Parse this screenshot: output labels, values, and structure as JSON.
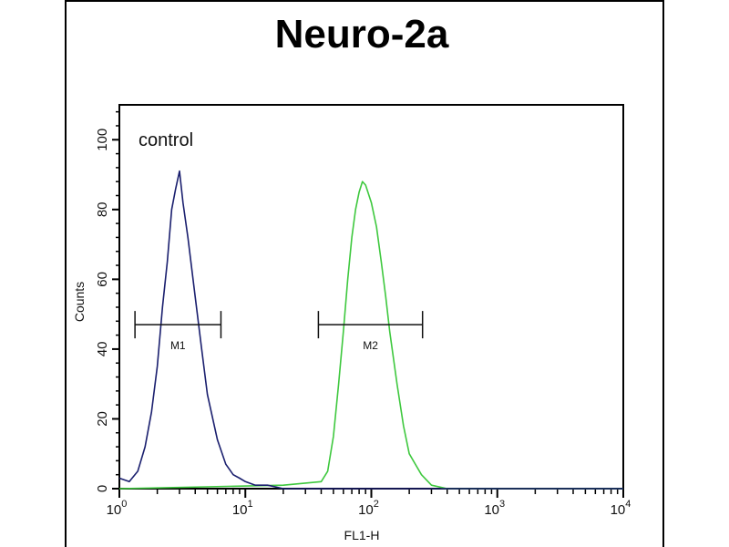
{
  "chart_data": {
    "type": "line",
    "title": "Neuro-2a",
    "xlabel": "FL1-H",
    "ylabel": "Counts",
    "xscale": "log",
    "xlim": [
      1,
      10000
    ],
    "ylim": [
      0,
      110
    ],
    "x_tick_labels": [
      {
        "base": "10",
        "exp": "0",
        "value": 1
      },
      {
        "base": "10",
        "exp": "1",
        "value": 10
      },
      {
        "base": "10",
        "exp": "2",
        "value": 100
      },
      {
        "base": "10",
        "exp": "3",
        "value": 1000
      },
      {
        "base": "10",
        "exp": "4",
        "value": 10000
      }
    ],
    "y_ticks": [
      0,
      20,
      40,
      60,
      80,
      100
    ],
    "y_tick_labels": [
      "0",
      "20",
      "40",
      "60",
      "80",
      "100"
    ],
    "grid": false,
    "annotation": "control",
    "series": [
      {
        "color": "#1a1f6e",
        "x": [
          1,
          1.2,
          1.4,
          1.6,
          1.8,
          2,
          2.2,
          2.4,
          2.6,
          2.8,
          3,
          3.2,
          3.5,
          4,
          4.5,
          5,
          6,
          7,
          8,
          9,
          10,
          12,
          15,
          20,
          30,
          50,
          100,
          1000,
          10000
        ],
        "y": [
          3,
          2,
          5,
          12,
          22,
          35,
          52,
          65,
          80,
          86,
          91,
          82,
          72,
          55,
          40,
          27,
          14,
          7,
          4,
          3,
          2,
          1,
          1,
          0,
          0,
          0,
          0,
          0,
          0
        ]
      },
      {
        "color": "#3ec83e",
        "x": [
          1,
          20,
          40,
          45,
          50,
          55,
          60,
          65,
          70,
          75,
          80,
          85,
          90,
          100,
          110,
          120,
          130,
          140,
          160,
          180,
          200,
          250,
          300,
          400,
          10000
        ],
        "y": [
          0,
          1,
          2,
          5,
          15,
          30,
          45,
          60,
          72,
          80,
          85,
          88,
          87,
          82,
          75,
          65,
          55,
          45,
          30,
          18,
          10,
          4,
          1,
          0,
          0
        ]
      }
    ],
    "markers": [
      {
        "label": "M1",
        "x_range": [
          1.33,
          6.4
        ],
        "y": 47
      },
      {
        "label": "M2",
        "x_range": [
          38,
          255
        ],
        "y": 47
      }
    ]
  }
}
